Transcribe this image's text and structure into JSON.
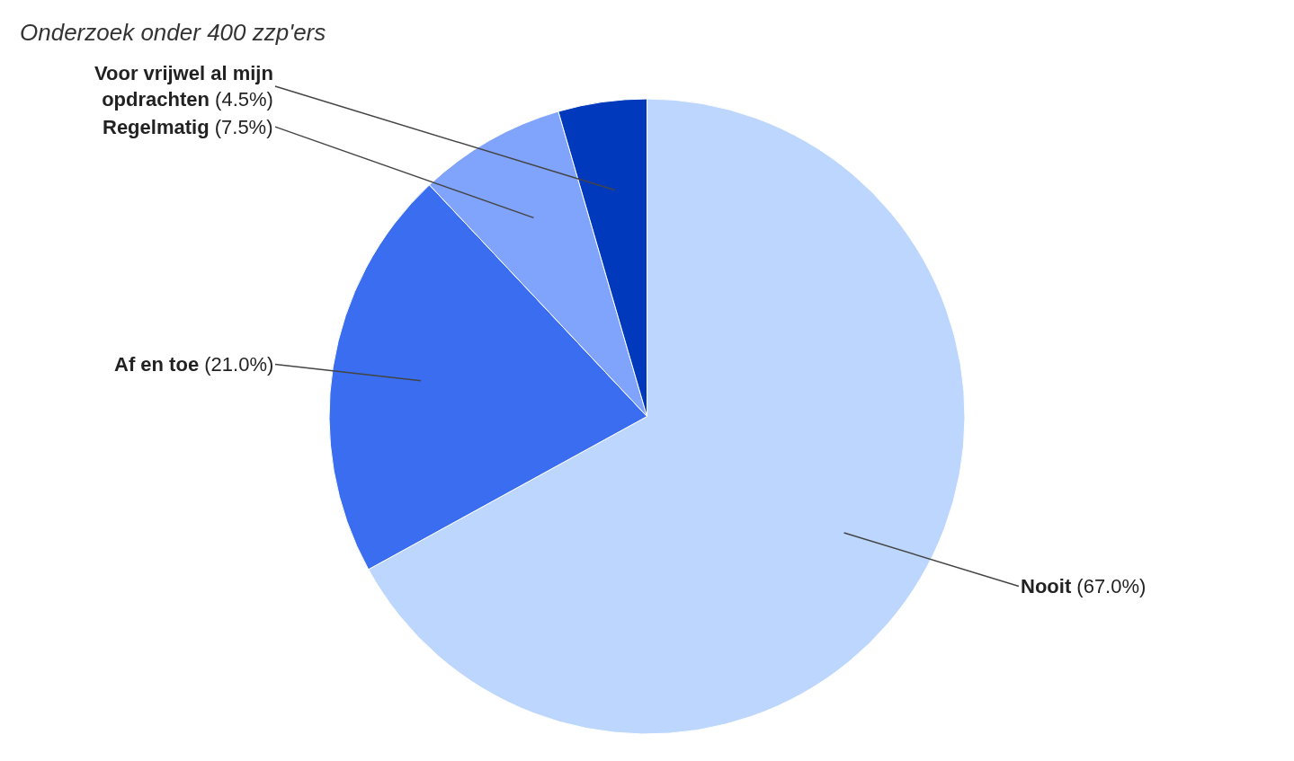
{
  "chart_data": {
    "type": "pie",
    "subtitle": "Onderzoek onder 400 zzp'ers",
    "categories": [
      "Nooit",
      "Af en toe",
      "Regelmatig",
      "Voor vrijwel al mijn opdrachten"
    ],
    "values": [
      67.0,
      21.0,
      7.5,
      4.5
    ],
    "value_labels": [
      "(67.0%)",
      "(21.0%)",
      "(7.5%)",
      "(4.5%)"
    ],
    "colors": [
      "#bcd6fd",
      "#3a6df0",
      "#80a3fb",
      "#0039bb"
    ],
    "legend": false
  }
}
